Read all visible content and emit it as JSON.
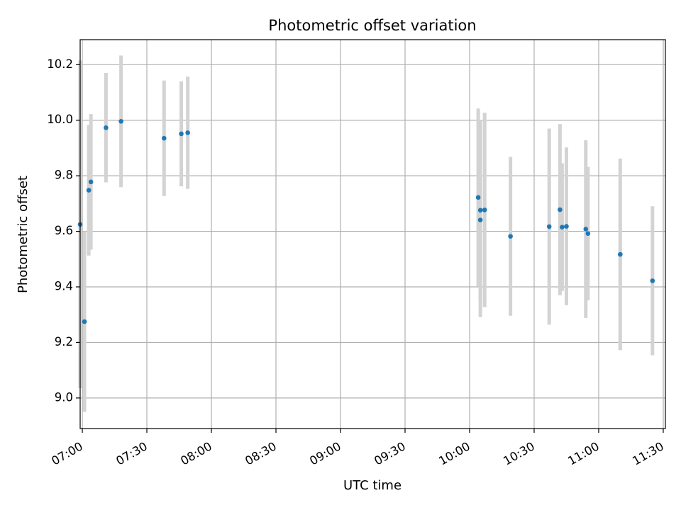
{
  "chart_data": {
    "type": "scatter",
    "title": "Photometric offset variation",
    "xlabel": "UTC time",
    "ylabel": "Photometric offset",
    "xlim": [
      "06:59",
      "11:31"
    ],
    "ylim": [
      8.89,
      10.29
    ],
    "x_ticks": [
      "07:00",
      "07:30",
      "08:00",
      "08:30",
      "09:00",
      "09:30",
      "10:00",
      "10:30",
      "11:00",
      "11:30"
    ],
    "y_ticks": [
      9.0,
      9.2,
      9.4,
      9.6,
      9.8,
      10.0,
      10.2
    ],
    "grid": true,
    "colors": {
      "points": "#1f77b4",
      "errorbars": "#d3d3d3"
    },
    "points": [
      {
        "t": "06:59",
        "y": 9.625,
        "err": 0.59
      },
      {
        "t": "07:01",
        "y": 9.275,
        "err": 0.325
      },
      {
        "t": "07:03",
        "y": 9.748,
        "err": 0.235
      },
      {
        "t": "07:04",
        "y": 9.778,
        "err": 0.244
      },
      {
        "t": "07:11",
        "y": 9.973,
        "err": 0.197
      },
      {
        "t": "07:18",
        "y": 9.996,
        "err": 0.237
      },
      {
        "t": "07:38",
        "y": 9.935,
        "err": 0.208
      },
      {
        "t": "07:46",
        "y": 9.951,
        "err": 0.189
      },
      {
        "t": "07:49",
        "y": 9.955,
        "err": 0.202
      },
      {
        "t": "10:04",
        "y": 9.722,
        "err": 0.32
      },
      {
        "t": "10:05",
        "y": 9.641,
        "err": 0.35
      },
      {
        "t": "10:05",
        "y": 9.676,
        "err": 0.325
      },
      {
        "t": "10:07",
        "y": 9.677,
        "err": 0.35
      },
      {
        "t": "10:19",
        "y": 9.582,
        "err": 0.286
      },
      {
        "t": "10:37",
        "y": 9.617,
        "err": 0.353
      },
      {
        "t": "10:42",
        "y": 9.678,
        "err": 0.308
      },
      {
        "t": "10:43",
        "y": 9.615,
        "err": 0.23
      },
      {
        "t": "10:45",
        "y": 9.618,
        "err": 0.284
      },
      {
        "t": "10:54",
        "y": 9.608,
        "err": 0.32
      },
      {
        "t": "10:55",
        "y": 9.592,
        "err": 0.24
      },
      {
        "t": "11:10",
        "y": 9.517,
        "err": 0.345
      },
      {
        "t": "11:25",
        "y": 9.422,
        "err": 0.268
      }
    ]
  }
}
